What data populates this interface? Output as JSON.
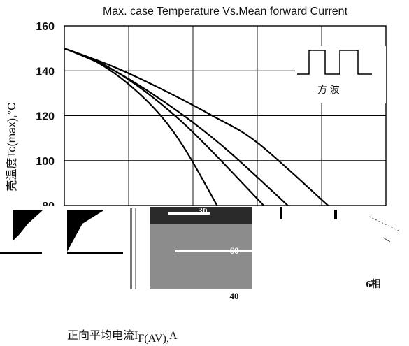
{
  "chart_data": {
    "type": "line",
    "title": "Max. case Temperature Vs.Mean forward Current",
    "ylabel": "壳温度Tc(max),°C",
    "xlabel_prefix": "正向平均电流I",
    "xlabel_sub": "F(AV),",
    "xlabel_suffix": "A",
    "yticks": [
      "160",
      "140",
      "120",
      "100",
      "80"
    ],
    "ylim": [
      80,
      160
    ],
    "xlim": [
      0,
      10
    ],
    "grid": true,
    "inset_label": "方  波",
    "series": [
      {
        "x": [
          0,
          1.0,
          2.0,
          3.0,
          3.8,
          4.75
        ],
        "y": [
          150,
          144,
          134,
          120,
          104,
          80
        ]
      },
      {
        "x": [
          0,
          1.2,
          2.4,
          3.6,
          4.6,
          6.2
        ],
        "y": [
          150,
          143,
          132,
          118,
          104,
          80
        ]
      },
      {
        "x": [
          0,
          1.3,
          2.6,
          4.0,
          5.2,
          6.95
        ],
        "y": [
          150,
          142,
          131,
          117,
          103,
          80
        ]
      },
      {
        "x": [
          0,
          1.5,
          3.0,
          4.6,
          6.0,
          8.2
        ],
        "y": [
          150,
          142,
          132,
          120,
          108,
          80
        ]
      }
    ],
    "curve_labels": [
      "30",
      "60",
      "40",
      "6相"
    ]
  }
}
